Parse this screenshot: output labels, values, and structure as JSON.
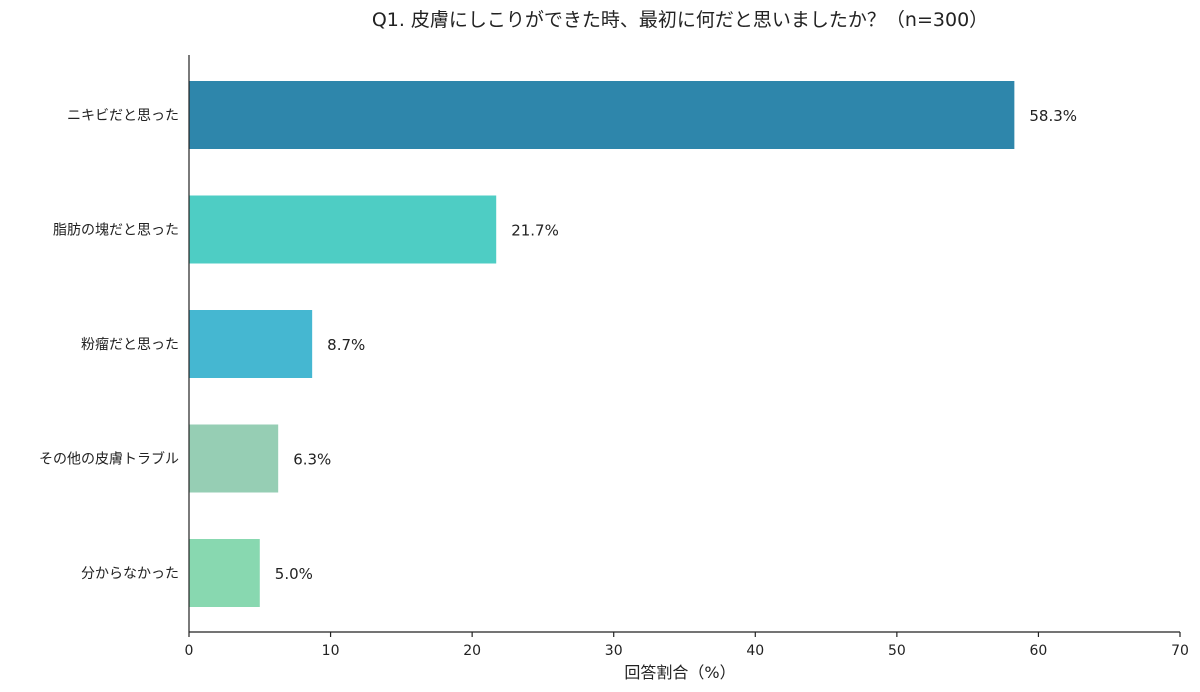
{
  "chart_data": {
    "type": "bar",
    "orientation": "horizontal",
    "title": "Q1. 皮膚にしこりができた時、最初に何だと思いましたか？（n=300）",
    "xlabel": "回答割合（%）",
    "ylabel": "",
    "xlim": [
      0,
      70
    ],
    "xticks": [
      0,
      10,
      20,
      30,
      40,
      50,
      60,
      70
    ],
    "categories": [
      "ニキビだと思った",
      "脂肪の塊だと思った",
      "粉瘤だと思った",
      "その他の皮膚トラブル",
      "分からなかった"
    ],
    "values": [
      58.3,
      21.7,
      8.7,
      6.3,
      5.0
    ],
    "value_labels": [
      "58.3%",
      "21.7%",
      "8.7%",
      "6.3%",
      "5.0%"
    ],
    "colors": [
      "#2E86AB",
      "#4ECDC4",
      "#45B7D1",
      "#96CEB4",
      "#88D8B0"
    ],
    "grid": false,
    "legend": "none"
  }
}
